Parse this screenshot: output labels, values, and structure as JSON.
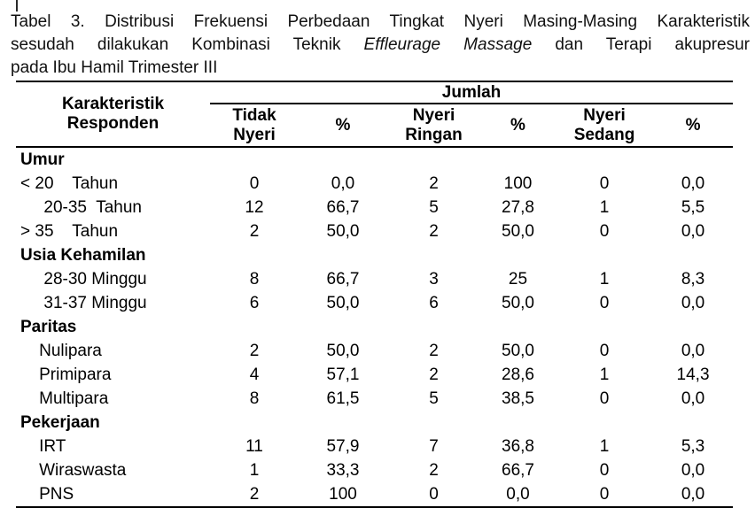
{
  "accent_colors": {
    "text": "#000000",
    "background": "#ffffff",
    "rule": "#000000"
  },
  "caption": {
    "line1": "Tabel 3. Distribusi Frekuensi Perbedaan Tingkat Nyeri Masing-Masing Karakteristik",
    "line2_prefix": "sesudah dilakukan Kombinasi Teknik ",
    "line2_italic": "Effleurage Massage",
    "line2_suffix": "  dan Terapi akupresur",
    "line3": "pada Ibu Hamil Trimester III"
  },
  "table": {
    "header": {
      "characteristic_col": "Karakteristik Responden",
      "group_label": "Jumlah",
      "subcolumns": [
        "Tidak Nyeri",
        "%",
        "Nyeri Ringan",
        "%",
        "Nyeri Sedang",
        "%"
      ]
    },
    "sections": [
      {
        "name": "Umur",
        "rows": [
          {
            "label": "< 20    Tahun",
            "values": [
              "0",
              "0,0",
              "2",
              "100",
              "0",
              "0,0"
            ]
          },
          {
            "label": "     20-35  Tahun",
            "values": [
              "12",
              "66,7",
              "5",
              "27,8",
              "1",
              "5,5"
            ]
          },
          {
            "label": "> 35    Tahun",
            "values": [
              "2",
              "50,0",
              "2",
              "50,0",
              "0",
              "0,0"
            ]
          }
        ]
      },
      {
        "name": "Usia Kehamilan",
        "rows": [
          {
            "label": "     28-30 Minggu",
            "values": [
              "8",
              "66,7",
              "3",
              "25",
              "1",
              "8,3"
            ]
          },
          {
            "label": "     31-37 Minggu",
            "values": [
              "6",
              "50,0",
              "6",
              "50,0",
              "0",
              "0,0"
            ]
          }
        ]
      },
      {
        "name": "Paritas",
        "rows": [
          {
            "label": "    Nulipara",
            "values": [
              "2",
              "50,0",
              "2",
              "50,0",
              "0",
              "0,0"
            ]
          },
          {
            "label": "    Primipara",
            "values": [
              "4",
              "57,1",
              "2",
              "28,6",
              "1",
              "14,3"
            ]
          },
          {
            "label": "    Multipara",
            "values": [
              "8",
              "61,5",
              "5",
              "38,5",
              "0",
              "0,0"
            ]
          }
        ]
      },
      {
        "name": "Pekerjaan",
        "rows": [
          {
            "label": "    IRT",
            "values": [
              "11",
              "57,9",
              "7",
              "36,8",
              "1",
              "5,3"
            ]
          },
          {
            "label": "    Wiraswasta",
            "values": [
              "1",
              "33,3",
              "2",
              "66,7",
              "0",
              "0,0"
            ]
          },
          {
            "label": "    PNS",
            "values": [
              "2",
              "100",
              "0",
              "0,0",
              "0",
              "0,0"
            ]
          }
        ]
      }
    ]
  }
}
